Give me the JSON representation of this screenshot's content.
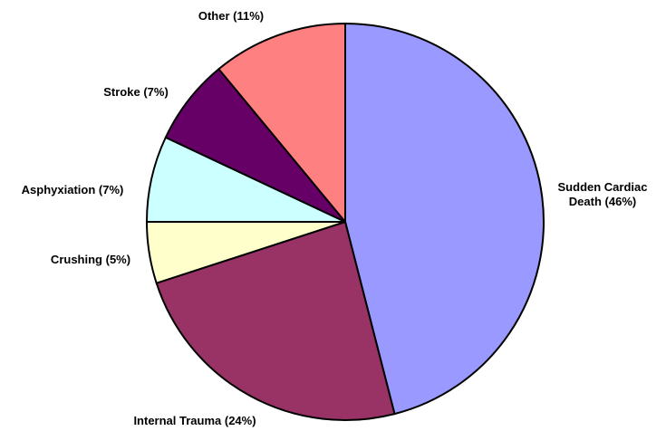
{
  "chart_data": {
    "type": "pie",
    "categories": [
      "Sudden Cardiac Death",
      "Internal Trauma",
      "Crushing",
      "Asphyxiation",
      "Stroke",
      "Other"
    ],
    "values": [
      46,
      24,
      5,
      7,
      7,
      11
    ],
    "value_labels": [
      "(46%)",
      "(24%)",
      "(5%)",
      "(7%)",
      "(7%)",
      "(11%)"
    ],
    "colors": [
      "#9999ff",
      "#993366",
      "#ffffcc",
      "#ccffff",
      "#660066",
      "#ff8080"
    ],
    "start_angle": 0,
    "direction": "clockwise"
  }
}
